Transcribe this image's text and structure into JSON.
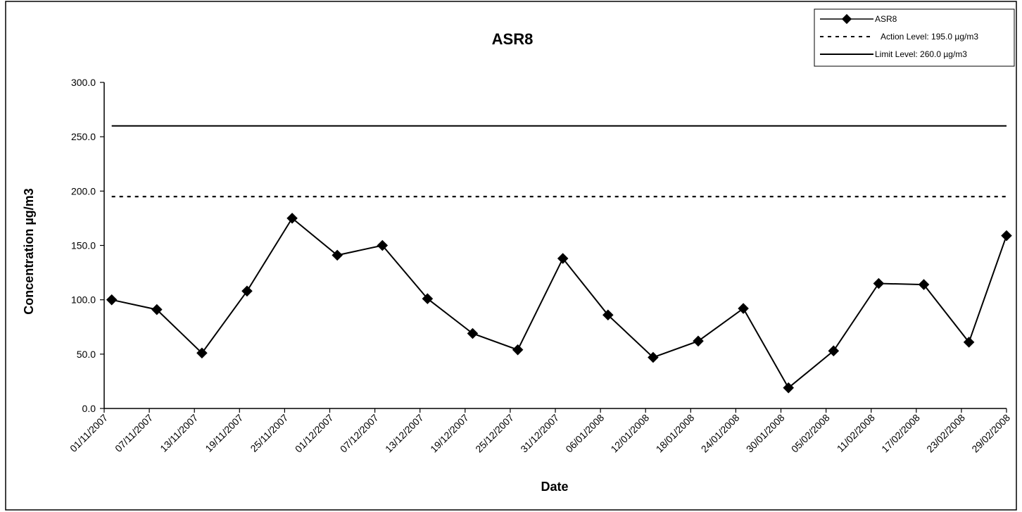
{
  "chart_data": {
    "type": "line",
    "title": "ASR8",
    "xlabel": "Date",
    "ylabel": "Concentration µg/m3",
    "ylim": [
      0,
      300
    ],
    "yticks": [
      "0.0",
      "50.0",
      "100.0",
      "150.0",
      "200.0",
      "250.0",
      "300.0"
    ],
    "x_ticks": [
      "01/11/2007",
      "07/11/2007",
      "13/11/2007",
      "19/11/2007",
      "25/11/2007",
      "01/12/2007",
      "07/12/2007",
      "13/12/2007",
      "19/12/2007",
      "25/12/2007",
      "31/12/2007",
      "06/01/2008",
      "12/01/2008",
      "18/01/2008",
      "24/01/2008",
      "30/01/2008",
      "05/02/2008",
      "11/02/2008",
      "17/02/2008",
      "23/02/2008",
      "29/02/2008"
    ],
    "grid": false,
    "legend_position": "top-right",
    "series": [
      {
        "name": "ASR8",
        "style": "solid-with-diamond-markers",
        "color": "#000000",
        "x": [
          "02/11/2007",
          "08/11/2007",
          "14/11/2007",
          "20/11/2007",
          "26/11/2007",
          "02/12/2007",
          "08/12/2007",
          "14/12/2007",
          "20/12/2007",
          "26/12/2007",
          "01/01/2008",
          "07/01/2008",
          "13/01/2008",
          "19/01/2008",
          "25/01/2008",
          "31/01/2008",
          "06/02/2008",
          "12/02/2008",
          "18/02/2008",
          "24/02/2008",
          "29/02/2008"
        ],
        "y": [
          100,
          91,
          51,
          108,
          175,
          141,
          150,
          101,
          69,
          54,
          138,
          86,
          47,
          62,
          92,
          19,
          53,
          115,
          114,
          61,
          159
        ]
      },
      {
        "name": "Action Level: 195.0 µg/m3",
        "style": "dashed",
        "color": "#000000",
        "x": [
          "02/11/2007",
          "29/02/2008"
        ],
        "y": [
          195,
          195
        ]
      },
      {
        "name": "Limit Level: 260.0 µg/m3",
        "style": "solid",
        "color": "#000000",
        "x": [
          "02/11/2007",
          "29/02/2008"
        ],
        "y": [
          260,
          260
        ]
      }
    ]
  }
}
